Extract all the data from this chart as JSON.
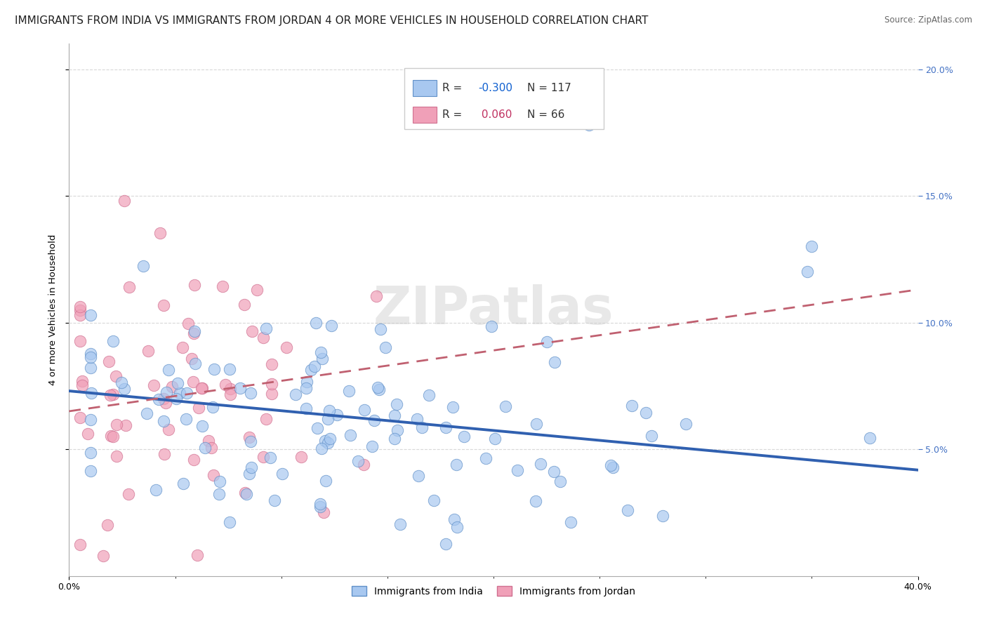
{
  "title": "IMMIGRANTS FROM INDIA VS IMMIGRANTS FROM JORDAN 4 OR MORE VEHICLES IN HOUSEHOLD CORRELATION CHART",
  "source": "Source: ZipAtlas.com",
  "ylabel": "4 or more Vehicles in Household",
  "xlim": [
    0.0,
    0.4
  ],
  "ylim": [
    0.0,
    0.21
  ],
  "yticks": [
    0.05,
    0.1,
    0.15,
    0.2
  ],
  "ytick_labels": [
    "5.0%",
    "10.0%",
    "15.0%",
    "20.0%"
  ],
  "india_color": "#a8c8f0",
  "jordan_color": "#f0a0b8",
  "india_line_color": "#3060b0",
  "jordan_line_color": "#c06070",
  "india_R": -0.3,
  "india_N": 117,
  "jordan_R": 0.06,
  "jordan_N": 66,
  "watermark": "ZIPatlas",
  "background_color": "#ffffff",
  "grid_color": "#d8d8d8",
  "title_fontsize": 11,
  "axis_label_fontsize": 9.5,
  "tick_fontsize": 9,
  "right_tick_color": "#4472c4",
  "legend_r_india_color": "#1060d0",
  "legend_r_jordan_color": "#c03060"
}
